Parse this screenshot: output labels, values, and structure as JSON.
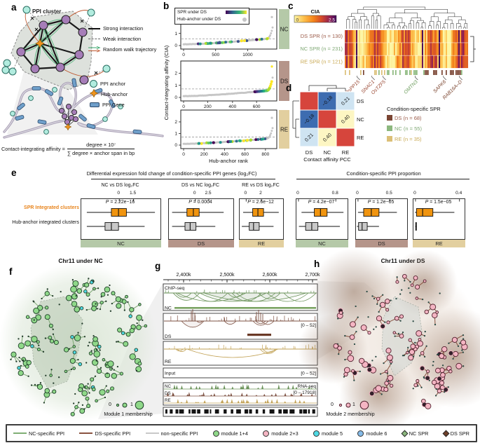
{
  "colors": {
    "nc": "#b5c9a8",
    "ds": "#b5958a",
    "re": "#e2cf9f",
    "nc_text": "#7fa874",
    "ds_text": "#9b5b49",
    "re_text": "#c8a851",
    "nc_line": "#7fae74",
    "ds_line": "#8a5340",
    "nonspecific_line": "#c8c8c8",
    "module14": "#8fd889",
    "module23": "#f4b5c3",
    "module5": "#4fd9e3",
    "module6": "#85bbe8",
    "nc_spr": "#8cb87e",
    "ds_spr": "#6f3f28",
    "orange_box": "#f0940f",
    "gray_box": "#c9c9c9",
    "matrix_red": "#d6453c",
    "matrix_blue": "#3d6cb0",
    "matrix_lightblue": "#cfe4f2",
    "matrix_yellow": "#fdf6c3"
  },
  "a": {
    "label": "a",
    "cluster_title": "PPI cluster",
    "edge_legend": [
      {
        "name": "strong-interaction",
        "label": "Strong interaction"
      },
      {
        "name": "weak-interaction",
        "label": "Weak interaction"
      },
      {
        "name": "random-walk-trajectory",
        "label": "Random walk trajectory"
      }
    ],
    "node_legend": [
      {
        "name": "ppi-anchor",
        "label": "PPI anchor",
        "color": "#b2ecdf"
      },
      {
        "name": "hub-anchor",
        "label": "Hub-anchor",
        "color": "#f0941e"
      },
      {
        "name": "ppi-gene",
        "label": "PPI Gene",
        "color": "#6f9fca"
      }
    ],
    "formula": {
      "lhs": "Contact-integrating affinity =",
      "numerator": "degree × 10⁷",
      "denominator": "∑ degree  × anchor span in bp"
    }
  },
  "b": {
    "label": "b",
    "legend": [
      {
        "label": "SPR under DS"
      },
      {
        "label": "Hub-anchor under DS"
      }
    ],
    "ylabel": "Contact-integrating affinity (CIA)",
    "xlabel": "Hub-anchor rank",
    "yticks": [
      "0",
      "1",
      "2"
    ],
    "subplots": [
      {
        "condition": "NC",
        "threshold": 0.55,
        "mode": "scatter",
        "xticks": [
          {
            "label": "0",
            "f": 0.0
          },
          {
            "label": "500",
            "f": 0.36
          },
          {
            "label": "1000",
            "f": 0.72
          }
        ]
      },
      {
        "condition": "DS",
        "threshold": 0.7,
        "mode": "tail",
        "xticks": [
          {
            "label": "0",
            "f": 0.0
          },
          {
            "label": "200",
            "f": 0.27
          },
          {
            "label": "400",
            "f": 0.55
          },
          {
            "label": "600",
            "f": 0.82
          }
        ]
      },
      {
        "condition": "RE",
        "threshold": 0.7,
        "mode": "scatter",
        "xticks": [
          {
            "label": "0",
            "f": 0.0
          },
          {
            "label": "200",
            "f": 0.23
          },
          {
            "label": "400",
            "f": 0.46
          },
          {
            "label": "600",
            "f": 0.69
          },
          {
            "label": "800",
            "f": 0.92
          }
        ]
      }
    ]
  },
  "c": {
    "label": "c",
    "colorbar": {
      "title": "CIA",
      "min": "0",
      "max": "2.5"
    },
    "rows": [
      {
        "label": "DS SPR (n = 130)",
        "color": "#9b5b49"
      },
      {
        "label": "NC SPR (n = 231)",
        "color": "#7fa874"
      },
      {
        "label": "RE SPR (n = 121)",
        "color": "#c8a851"
      }
    ],
    "genes": [
      {
        "name": "OsPP15",
        "color": "#9b4a35",
        "f": 0.1
      },
      {
        "name": "SNAC1",
        "color": "#9b4a35",
        "f": 0.22
      },
      {
        "name": "OsTZF5",
        "color": "#9b4a35",
        "f": 0.31
      },
      {
        "name": "OMTN3",
        "color": "#6f9e5f",
        "f": 0.57
      },
      {
        "name": "SAPK6",
        "color": "#7c4631",
        "f": 0.8
      },
      {
        "name": "RAB16A–D",
        "color": "#7c4631",
        "f": 0.93
      }
    ]
  },
  "d": {
    "label": "d",
    "conditions": [
      "DS",
      "NC",
      "RE"
    ],
    "values": [
      [
        null,
        "−0.18",
        "0.21"
      ],
      [
        "−0.18",
        null,
        "0.40"
      ],
      [
        "0.21",
        "0.40",
        null
      ]
    ],
    "caption": "Contact affinity PCC",
    "legend_title": "Condition-specific SPR",
    "legend": [
      {
        "label": "DS (n = 68)",
        "color": "#7a4533",
        "text_color": "#9b5b49"
      },
      {
        "label": "NC (n = 55)",
        "color": "#8cb87e",
        "text_color": "#7fa874"
      },
      {
        "label": "RE (n = 35)",
        "color": "#dcbf77",
        "text_color": "#c8a851"
      }
    ]
  },
  "e": {
    "label": "e",
    "group1_title": "Differential expression fold change of condition-specific PPI genes (log₂FC)",
    "group2_title": "Condition-specific PPI proportion",
    "row_labels": [
      {
        "label": "SPR Integrated clusters",
        "color": "#e8851e"
      },
      {
        "label": "Hub-anchor integrated clusters",
        "color": "#222222"
      }
    ],
    "plots": [
      {
        "axis_title": "NC vs DS log₂FC",
        "p_value": "P = 2.22e−16",
        "footer": "NC",
        "footer_color_key": "nc",
        "ticks": [
          {
            "label": "0",
            "f": 0.48
          },
          {
            "label": "1.5",
            "f": 0.66
          }
        ]
      },
      {
        "axis_title": "DS vs NC log₂FC",
        "p_value": "P = 0.0004",
        "footer": "DS",
        "footer_color_key": "ds",
        "ticks": [
          {
            "label": "0",
            "f": 0.41
          },
          {
            "label": "2.5",
            "f": 0.62
          }
        ]
      },
      {
        "axis_title": "RE vs DS log₂FC",
        "p_value": "P = 2.6e−12",
        "footer": "RE",
        "footer_color_key": "re",
        "ticks": [
          {
            "label": "0",
            "f": 0.15
          },
          {
            "label": "2",
            "f": 0.5
          }
        ]
      },
      {
        "axis_title": "",
        "p_value": "P = 4.2e−07",
        "footer": "NC",
        "footer_color_key": "nc",
        "ticks": [
          {
            "label": "0",
            "f": 0.04
          },
          {
            "label": "0.8",
            "f": 0.77
          }
        ]
      },
      {
        "axis_title": "",
        "p_value": "P = 1.2e−05",
        "footer": "DS",
        "footer_color_key": "ds",
        "ticks": [
          {
            "label": "0",
            "f": 0.04
          },
          {
            "label": "0.5",
            "f": 0.66
          }
        ]
      },
      {
        "axis_title": "",
        "p_value": "P = 1.5e−05",
        "footer": "RE",
        "footer_color_key": "re",
        "ticks": [
          {
            "label": "0",
            "f": 0.04
          },
          {
            "label": "0.4",
            "f": 0.9
          }
        ]
      }
    ]
  },
  "f": {
    "label": "f",
    "title": "Chr11 under NC",
    "size_legend": {
      "min": "0",
      "max": "1",
      "caption": "Module 1 membership"
    }
  },
  "g": {
    "label": "g",
    "coords": [
      "2,400k",
      "2,500k",
      "2,600k",
      "2,700k"
    ],
    "tracks": {
      "chip": "ChIP-seq",
      "nc": "NC",
      "ds": "DS",
      "re": "RE",
      "input": "Input",
      "range_ds": "[0 – 52]",
      "range_input": "[0 – 52]",
      "rna": "RNA-seq",
      "range_rna": "[0 – 17918]"
    }
  },
  "h": {
    "label": "h",
    "title": "Chr11 under DS",
    "size_legend": {
      "min": "0",
      "max": "1",
      "caption": "Module 2 membership"
    }
  },
  "legend": {
    "items": [
      {
        "type": "line",
        "color_key": "nc_line",
        "label": "NC-specific PPI"
      },
      {
        "type": "line",
        "color_key": "ds_line",
        "label": "DS-specific PPI"
      },
      {
        "type": "line",
        "color_key": "nonspecific_line",
        "label": "non-specific PPI"
      },
      {
        "type": "circle",
        "color_key": "module14",
        "label": "module 1+4"
      },
      {
        "type": "circle",
        "color_key": "module23",
        "label": "module 2+3"
      },
      {
        "type": "circle",
        "color_key": "module5",
        "label": "module 5"
      },
      {
        "type": "circle",
        "color_key": "module6",
        "label": "module 6"
      },
      {
        "type": "diamond",
        "color_key": "nc_spr",
        "label": "NC SPR"
      },
      {
        "type": "diamond",
        "color_key": "ds_spr",
        "label": "DS SPR"
      }
    ]
  },
  "chart_data": [
    {
      "id": "b",
      "type": "scatter",
      "xlabel": "Hub-anchor rank",
      "ylabel": "Contact-integrating affinity (CIA)",
      "ylim": [
        0,
        2.8
      ],
      "subplots": [
        {
          "condition": "NC",
          "x_max": 1380,
          "xticks": [
            0,
            500,
            1000
          ],
          "threshold": 0.55,
          "spr_points": "scattered along curve"
        },
        {
          "condition": "DS",
          "x_max": 730,
          "xticks": [
            0,
            200,
            400,
            600
          ],
          "threshold": 0.7,
          "spr_points": "concentrated at highest ranks"
        },
        {
          "condition": "RE",
          "x_max": 870,
          "xticks": [
            0,
            200,
            400,
            600,
            800
          ],
          "threshold": 0.7,
          "spr_points": "scattered along curve"
        }
      ]
    },
    {
      "id": "c",
      "type": "heatmap",
      "rows": [
        "DS SPR (n = 130)",
        "NC SPR (n = 231)",
        "RE SPR (n = 121)"
      ],
      "colorbar": {
        "label": "CIA",
        "range": [
          0,
          2.5
        ]
      }
    },
    {
      "id": "d",
      "type": "heatmap",
      "labels": [
        "DS",
        "NC",
        "RE"
      ],
      "values": [
        [
          1,
          -0.18,
          0.21
        ],
        [
          -0.18,
          1,
          0.4
        ],
        [
          0.21,
          0.4,
          1
        ]
      ],
      "title": "Contact affinity PCC"
    },
    {
      "id": "e",
      "type": "boxplot",
      "groups": [
        "SPR Integrated clusters",
        "Hub-anchor integrated clusters"
      ],
      "panels": [
        {
          "axis": "NC vs DS log₂FC",
          "p": "2.22e−16",
          "condition": "NC"
        },
        {
          "axis": "DS vs NC log₂FC",
          "p": "0.0004",
          "condition": "DS"
        },
        {
          "axis": "RE vs DS log₂FC",
          "p": "2.6e−12",
          "condition": "RE"
        },
        {
          "axis": "proportion",
          "p": "4.2e−07",
          "condition": "NC"
        },
        {
          "axis": "proportion",
          "p": "1.2e−05",
          "condition": "DS"
        },
        {
          "axis": "proportion",
          "p": "1.5e−05",
          "condition": "RE"
        }
      ]
    }
  ]
}
